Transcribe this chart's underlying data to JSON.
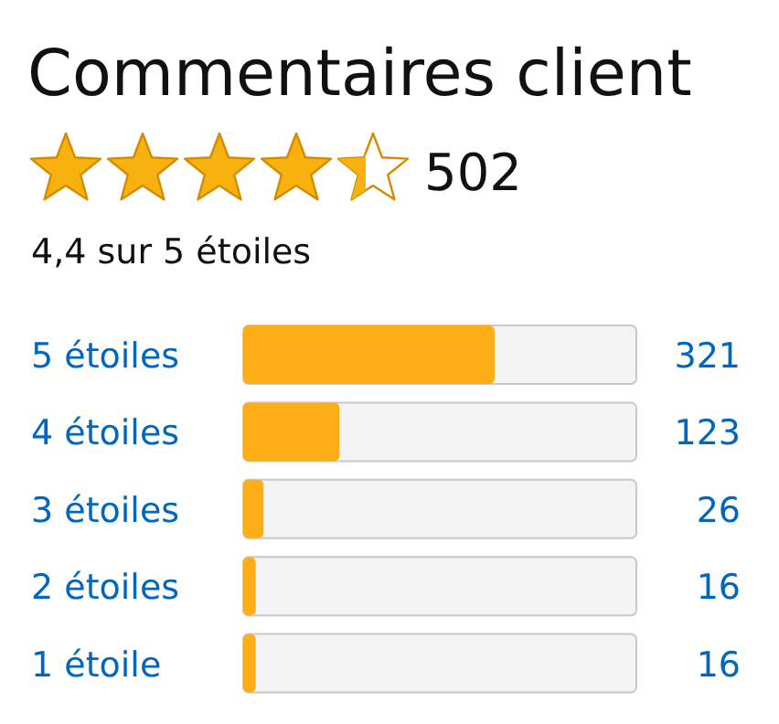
{
  "chart_data": {
    "type": "bar",
    "orientation": "horizontal",
    "title": "Commentaires client",
    "annotations": [
      "502",
      "4,4 sur 5 étoiles"
    ],
    "categories": [
      "5 étoiles",
      "4 étoiles",
      "3 étoiles",
      "2 étoiles",
      "1 étoile"
    ],
    "values": [
      321,
      123,
      26,
      16,
      16
    ],
    "color": "#fdae17",
    "xlim": [
      0,
      502
    ],
    "data_labels": true
  }
}
